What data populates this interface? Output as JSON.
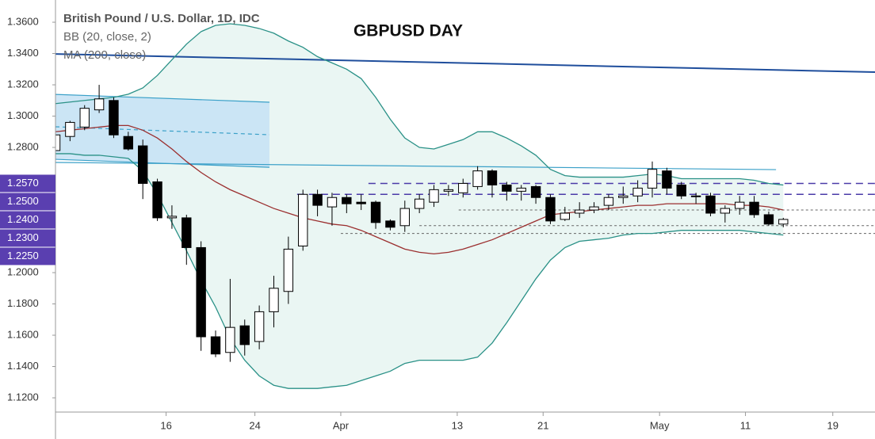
{
  "chart_data": {
    "type": "candlestick",
    "title": "GBPUSD DAY",
    "legend": [
      "British Pound / U.S. Dollar, 1D, IDC",
      "BB (20, close, 2)",
      "MA (200, close)"
    ],
    "xlim": [
      0,
      56.3
    ],
    "ylim": [
      1.1109,
      1.3742
    ],
    "yticks": [
      {
        "value": 1.36,
        "label": "1.3600"
      },
      {
        "value": 1.34,
        "label": "1.3400"
      },
      {
        "value": 1.32,
        "label": "1.3200"
      },
      {
        "value": 1.3,
        "label": "1.3000"
      },
      {
        "value": 1.28,
        "label": "1.2800"
      },
      {
        "value": 1.2,
        "label": "1.2000"
      },
      {
        "value": 1.18,
        "label": "1.1800"
      },
      {
        "value": 1.16,
        "label": "1.1600"
      },
      {
        "value": 1.14,
        "label": "1.1400"
      },
      {
        "value": 1.12,
        "label": "1.1200"
      }
    ],
    "xticks": [
      {
        "value": 7.6,
        "label": "16"
      },
      {
        "value": 13.7,
        "label": "24"
      },
      {
        "value": 19.6,
        "label": "Apr"
      },
      {
        "value": 27.6,
        "label": "13"
      },
      {
        "value": 33.5,
        "label": "21"
      },
      {
        "value": 41.5,
        "label": "May"
      },
      {
        "value": 47.4,
        "label": "11"
      },
      {
        "value": 53.4,
        "label": "19"
      }
    ],
    "up_color": "#ffffff",
    "down_color": "#000000",
    "x": [
      0,
      1,
      2,
      3,
      4,
      5,
      6,
      7,
      8,
      9,
      10,
      11,
      12,
      13,
      14,
      15,
      16,
      17,
      18,
      19,
      20,
      21,
      22,
      23,
      24,
      25,
      26,
      27,
      28,
      29,
      30,
      31,
      32,
      33,
      34,
      35,
      36,
      37,
      38,
      39,
      40,
      41,
      42,
      43,
      44,
      45,
      46,
      47,
      48,
      49,
      50
    ],
    "open": [
      1.278,
      1.287,
      1.293,
      1.304,
      1.31,
      1.287,
      1.281,
      1.258,
      1.235,
      1.235,
      1.216,
      1.159,
      1.149,
      1.166,
      1.156,
      1.175,
      1.188,
      1.217,
      1.25,
      1.242,
      1.248,
      1.245,
      1.245,
      1.233,
      1.23,
      1.241,
      1.245,
      1.252,
      1.251,
      1.255,
      1.265,
      1.256,
      1.252,
      1.255,
      1.248,
      1.234,
      1.238,
      1.24,
      1.243,
      1.248,
      1.249,
      1.254,
      1.265,
      1.256,
      1.249,
      1.249,
      1.238,
      1.241,
      1.245,
      1.237,
      1.231
    ],
    "high": [
      1.292,
      1.297,
      1.307,
      1.32,
      1.312,
      1.29,
      1.285,
      1.26,
      1.243,
      1.237,
      1.22,
      1.163,
      1.196,
      1.17,
      1.179,
      1.198,
      1.223,
      1.253,
      1.253,
      1.251,
      1.25,
      1.25,
      1.246,
      1.234,
      1.246,
      1.25,
      1.256,
      1.256,
      1.26,
      1.268,
      1.266,
      1.258,
      1.256,
      1.256,
      1.25,
      1.242,
      1.245,
      1.245,
      1.25,
      1.255,
      1.259,
      1.271,
      1.267,
      1.258,
      1.251,
      1.251,
      1.243,
      1.249,
      1.249,
      1.239,
      1.235
    ],
    "low": [
      1.274,
      1.284,
      1.291,
      1.302,
      1.286,
      1.278,
      1.247,
      1.233,
      1.228,
      1.205,
      1.15,
      1.146,
      1.143,
      1.147,
      1.151,
      1.165,
      1.18,
      1.214,
      1.236,
      1.23,
      1.238,
      1.24,
      1.228,
      1.227,
      1.226,
      1.238,
      1.242,
      1.249,
      1.248,
      1.253,
      1.248,
      1.246,
      1.246,
      1.244,
      1.231,
      1.233,
      1.235,
      1.238,
      1.24,
      1.244,
      1.245,
      1.248,
      1.25,
      1.247,
      1.244,
      1.236,
      1.232,
      1.237,
      1.235,
      1.23,
      1.229
    ],
    "close": [
      1.288,
      1.296,
      1.305,
      1.311,
      1.288,
      1.279,
      1.257,
      1.235,
      1.236,
      1.216,
      1.159,
      1.148,
      1.165,
      1.154,
      1.175,
      1.19,
      1.215,
      1.25,
      1.243,
      1.248,
      1.244,
      1.244,
      1.232,
      1.229,
      1.241,
      1.247,
      1.253,
      1.253,
      1.257,
      1.265,
      1.256,
      1.252,
      1.254,
      1.248,
      1.233,
      1.238,
      1.24,
      1.242,
      1.248,
      1.249,
      1.254,
      1.266,
      1.254,
      1.249,
      1.249,
      1.238,
      1.241,
      1.245,
      1.237,
      1.231,
      1.234
    ],
    "series": [
      {
        "color": "#2a9187",
        "values": [
          1.308,
          1.309,
          1.31,
          1.311,
          1.312,
          1.314,
          1.318,
          1.326,
          1.336,
          1.346,
          1.354,
          1.358,
          1.359,
          1.358,
          1.356,
          1.353,
          1.348,
          1.344,
          1.338,
          1.334,
          1.33,
          1.324,
          1.312,
          1.298,
          1.286,
          1.28,
          1.279,
          1.282,
          1.285,
          1.29,
          1.29,
          1.286,
          1.281,
          1.275,
          1.266,
          1.262,
          1.261,
          1.261,
          1.261,
          1.261,
          1.262,
          1.263,
          1.262,
          1.26,
          1.26,
          1.26,
          1.26,
          1.26,
          1.259,
          1.257,
          1.256
        ]
      },
      {
        "color": "#2a9187",
        "values": [
          1.276,
          1.276,
          1.275,
          1.275,
          1.274,
          1.273,
          1.265,
          1.25,
          1.232,
          1.214,
          1.195,
          1.178,
          1.158,
          1.144,
          1.134,
          1.128,
          1.126,
          1.126,
          1.126,
          1.127,
          1.128,
          1.131,
          1.134,
          1.137,
          1.142,
          1.144,
          1.144,
          1.144,
          1.144,
          1.146,
          1.155,
          1.168,
          1.182,
          1.196,
          1.208,
          1.216,
          1.22,
          1.221,
          1.222,
          1.224,
          1.225,
          1.225,
          1.226,
          1.227,
          1.227,
          1.227,
          1.227,
          1.227,
          1.226,
          1.225,
          1.224
        ]
      },
      {
        "color": "#9b2f2f",
        "values": [
          1.29,
          1.291,
          1.292,
          1.293,
          1.294,
          1.294,
          1.291,
          1.286,
          1.279,
          1.271,
          1.264,
          1.258,
          1.253,
          1.249,
          1.245,
          1.241,
          1.238,
          1.235,
          1.233,
          1.231,
          1.23,
          1.227,
          1.223,
          1.219,
          1.215,
          1.213,
          1.212,
          1.213,
          1.215,
          1.218,
          1.221,
          1.225,
          1.229,
          1.233,
          1.237,
          1.238,
          1.239,
          1.24,
          1.241,
          1.242,
          1.243,
          1.243,
          1.244,
          1.244,
          1.244,
          1.244,
          1.244,
          1.243,
          1.243,
          1.242,
          1.24
        ]
      }
    ],
    "band_fill": "#eaf6f3",
    "trend_lines": [
      {
        "x": [
          0,
          56.3
        ],
        "y": [
          1.3397,
          1.3281
        ],
        "color": "#1f4e9c",
        "width": 2
      },
      {
        "x": [
          0,
          49.5
        ],
        "y": [
          1.2704,
          1.2658
        ],
        "color": "#3aa0c8",
        "width": 1.2
      }
    ],
    "channel": {
      "x": [
        0,
        14.7
      ],
      "upper": [
        1.3139,
        1.3089
      ],
      "mid": [
        1.2932,
        1.2881
      ],
      "lower": [
        1.2724,
        1.2673
      ],
      "color": "#3aa0c8",
      "fill": "#c6e2f5"
    },
    "levels": [
      {
        "value": 1.257,
        "label": "1.2570",
        "x0": 21.5,
        "style": "dashed",
        "color": "#4a3aa8"
      },
      {
        "value": 1.25,
        "label": "1.2500",
        "x0": 16.6,
        "style": "dashed",
        "color": "#4a3aa8"
      },
      {
        "value": 1.24,
        "label": "1.2400",
        "x0": 27.7,
        "style": "dotted",
        "color": "#666666"
      },
      {
        "value": 1.23,
        "label": "1.2300",
        "x0": 25.0,
        "style": "dotted",
        "color": "#666666"
      },
      {
        "value": 1.225,
        "label": "1.2250",
        "x0": 19.6,
        "style": "dotted",
        "color": "#666666"
      }
    ],
    "level_box_color": "#5a3fb0"
  }
}
